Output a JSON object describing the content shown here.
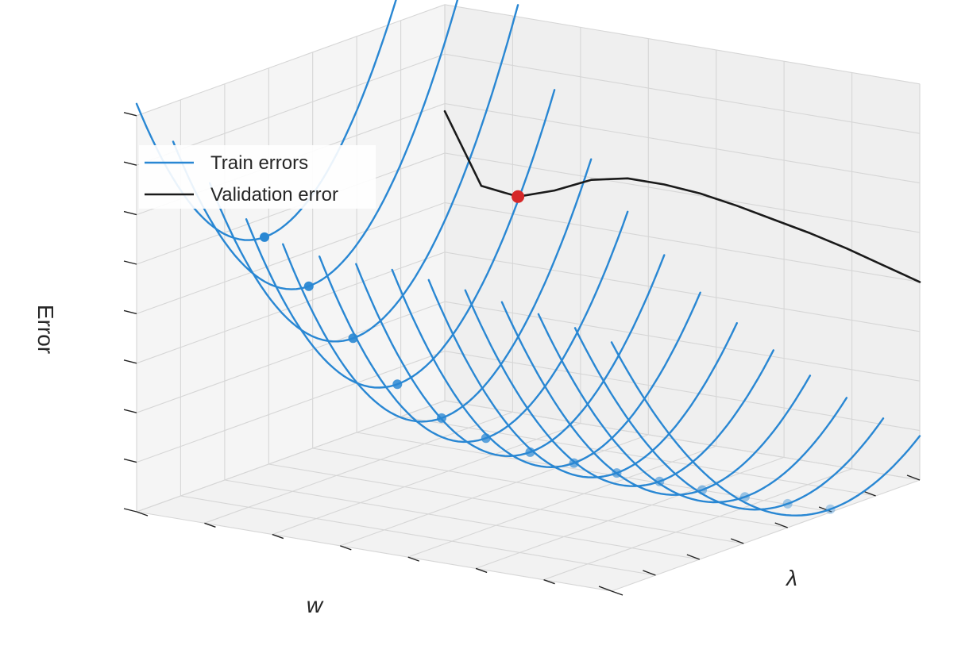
{
  "chart_data": {
    "type": "line",
    "plot3d": true,
    "title": "",
    "xlabel": "w",
    "ylabel": "λ",
    "zlabel": "Error",
    "tick_labels_shown": false,
    "grid": true,
    "legend": {
      "placement": "upper-left",
      "entries": [
        {
          "label": "Train errors",
          "color": "#2987d3"
        },
        {
          "label": "Validation error",
          "color": "#1a1a1a"
        }
      ]
    },
    "colors": {
      "train": "#2987d3",
      "validation": "#1a1a1a",
      "optimum": "#d62728"
    },
    "xlim": [
      -1,
      1
    ],
    "ylim": [
      0,
      1
    ],
    "zlim": [
      0,
      2.6
    ],
    "series": [
      {
        "name": "Train errors",
        "kind": "curve-family",
        "lambda": [
          0.0,
          0.077,
          0.154,
          0.231,
          0.308,
          0.385,
          0.462,
          0.538,
          0.615,
          0.692,
          0.769,
          0.846,
          0.923,
          1.0
        ],
        "curvature": [
          0.8,
          0.87,
          0.94,
          1.01,
          1.08,
          1.15,
          1.22,
          1.29,
          1.36,
          1.43,
          1.5,
          1.57,
          1.64,
          1.71
        ],
        "min_w": [
          -0.42,
          -0.38,
          -0.34,
          -0.3,
          -0.26,
          -0.22,
          -0.18,
          -0.13,
          -0.08,
          -0.03,
          0.02,
          0.07,
          0.12,
          0.17
        ],
        "min_error": [
          0.02,
          0.03,
          0.05,
          0.07,
          0.1,
          0.13,
          0.17,
          0.22,
          0.29,
          0.4,
          0.6,
          0.88,
          1.2,
          1.5
        ]
      },
      {
        "name": "Validation error",
        "lambda": [
          0.0,
          0.077,
          0.154,
          0.231,
          0.308,
          0.385,
          0.462,
          0.538,
          0.615,
          0.692,
          0.769,
          0.846,
          0.923,
          1.0
        ],
        "error": [
          1.3,
          1.37,
          1.44,
          1.5,
          1.55,
          1.6,
          1.64,
          1.66,
          1.66,
          1.61,
          1.5,
          1.42,
          1.45,
          1.9
        ]
      }
    ],
    "optimum": {
      "lambda": 0.846,
      "error": 1.42
    }
  }
}
